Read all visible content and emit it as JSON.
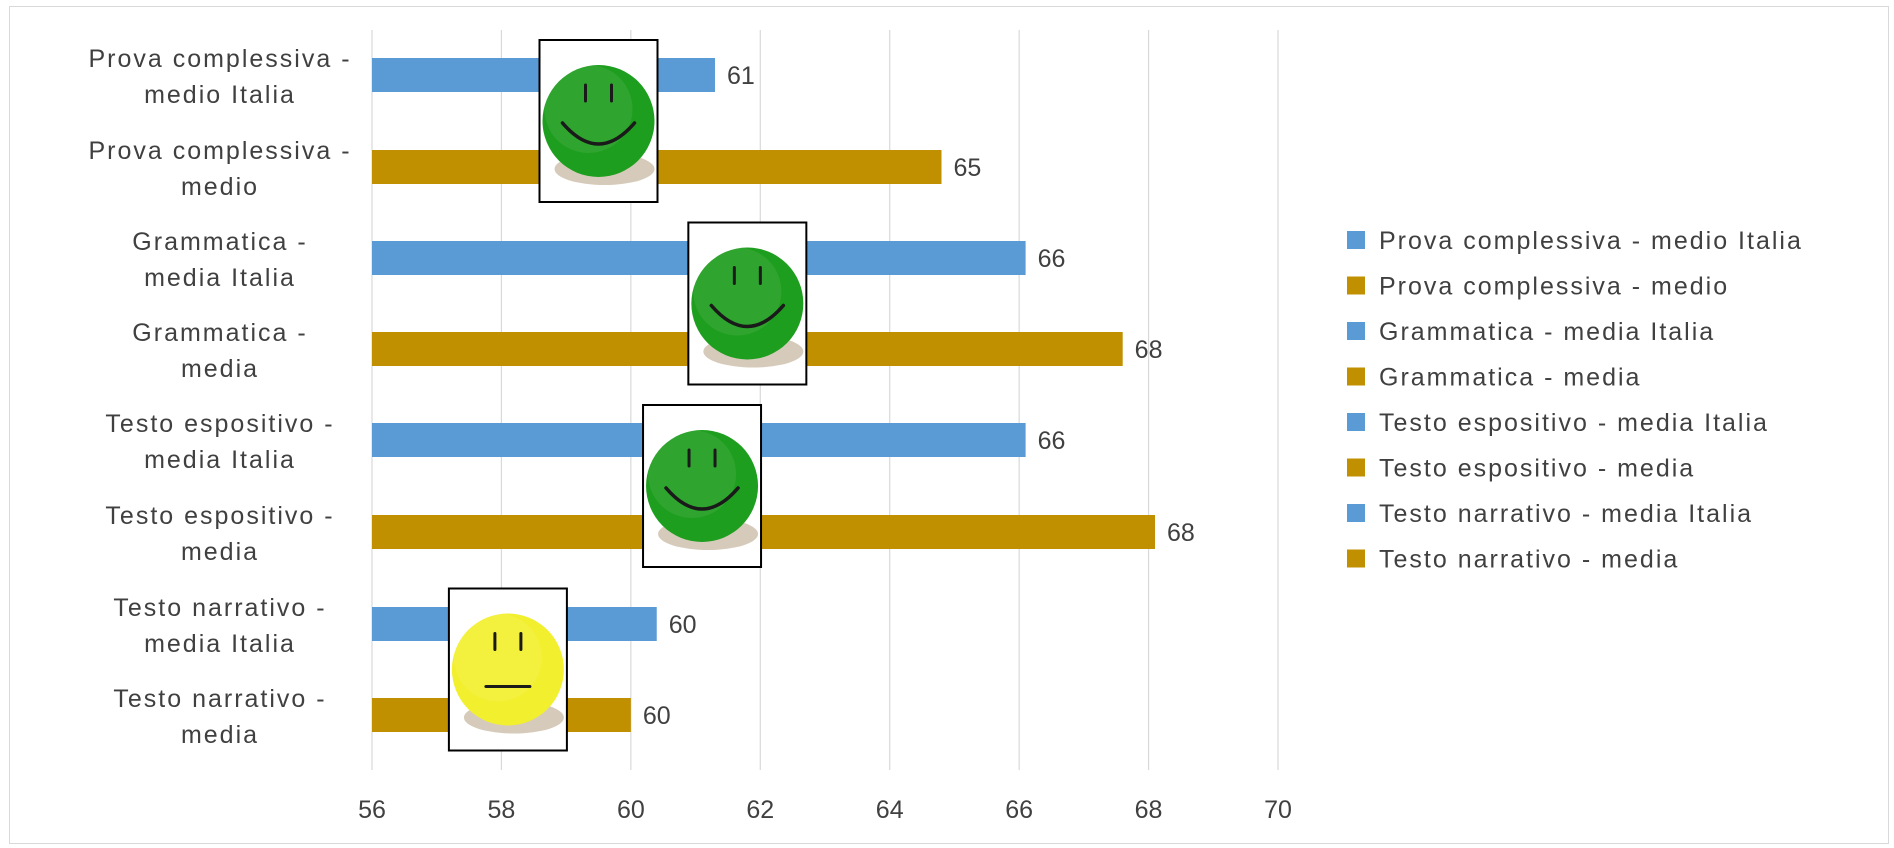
{
  "chart_data": {
    "type": "bar",
    "orientation": "horizontal",
    "categories": [
      "Prova complessiva - medio Italia",
      "Prova complessiva - medio",
      "Grammatica - media Italia",
      "Grammatica - media",
      "Testo espositivo - media Italia",
      "Testo espositivo - media",
      "Testo narrativo - media Italia",
      "Testo narrativo - media"
    ],
    "category_label_lines": [
      [
        "Prova complessiva -",
        "medio Italia"
      ],
      [
        "Prova complessiva -",
        "medio"
      ],
      [
        "Grammatica -",
        "media Italia"
      ],
      [
        "Grammatica -",
        "media"
      ],
      [
        "Testo espositivo -",
        "media Italia"
      ],
      [
        "Testo espositivo -",
        "media"
      ],
      [
        "Testo narrativo -",
        "media Italia"
      ],
      [
        "Testo narrativo -",
        "media"
      ]
    ],
    "values": [
      61.3,
      64.8,
      66.1,
      67.6,
      66.1,
      68.1,
      60.4,
      60.0
    ],
    "data_labels": [
      "61",
      "65",
      "66",
      "68",
      "66",
      "68",
      "60",
      "60"
    ],
    "bar_colors": [
      "#5b9bd5",
      "#c09000",
      "#5b9bd5",
      "#c09000",
      "#5b9bd5",
      "#c09000",
      "#5b9bd5",
      "#c09000"
    ],
    "xlim": [
      56,
      70
    ],
    "xticks": [
      "56",
      "58",
      "60",
      "62",
      "64",
      "66",
      "68",
      "70"
    ],
    "grid": true,
    "legend_position": "right",
    "legend": [
      {
        "label": "Prova complessiva - medio Italia",
        "color": "#5b9bd5"
      },
      {
        "label": "Prova complessiva - medio",
        "color": "#c09000"
      },
      {
        "label": "Grammatica -  media Italia",
        "color": "#5b9bd5"
      },
      {
        "label": "Grammatica -  media",
        "color": "#c09000"
      },
      {
        "label": "Testo espositivo - media Italia",
        "color": "#5b9bd5"
      },
      {
        "label": "Testo espositivo - media",
        "color": "#c09000"
      },
      {
        "label": "Testo narrativo - media Italia",
        "color": "#5b9bd5"
      },
      {
        "label": "Testo narrativo - media",
        "color": "#c09000"
      }
    ],
    "annotations": [
      {
        "type": "smiley-happy",
        "color": "#1e9e1e",
        "x": 59.5,
        "pair": 0
      },
      {
        "type": "smiley-happy",
        "color": "#1e9e1e",
        "x": 61.8,
        "pair": 1
      },
      {
        "type": "smiley-happy",
        "color": "#1e9e1e",
        "x": 61.1,
        "pair": 2
      },
      {
        "type": "smiley-neutral",
        "color": "#f2ef2e",
        "x": 58.1,
        "pair": 3
      }
    ]
  }
}
